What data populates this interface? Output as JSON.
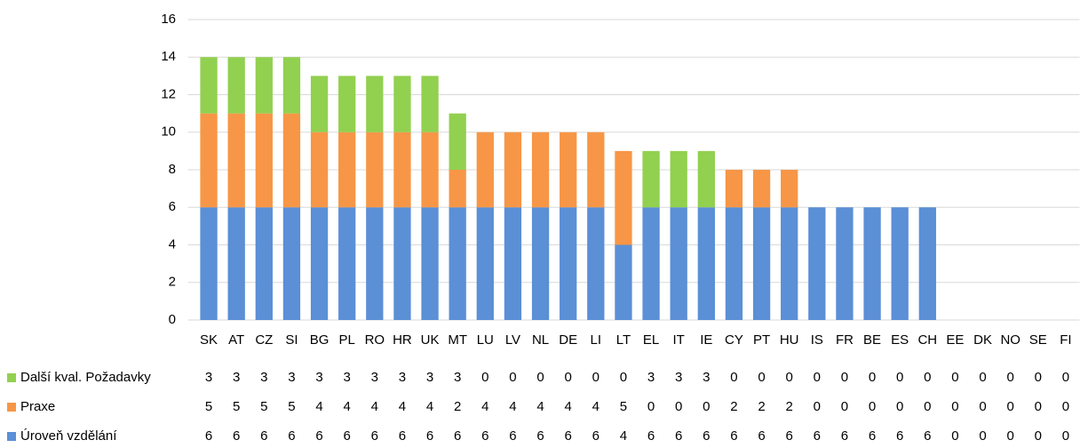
{
  "chart_data": {
    "type": "stacked_bar",
    "categories": [
      "SK",
      "AT",
      "CZ",
      "SI",
      "BG",
      "PL",
      "RO",
      "HR",
      "UK",
      "MT",
      "LU",
      "LV",
      "NL",
      "DE",
      "LI",
      "LT",
      "EL",
      "IT",
      "IE",
      "CY",
      "PT",
      "HU",
      "IS",
      "FR",
      "BE",
      "ES",
      "CH",
      "EE",
      "DK",
      "NO",
      "SE",
      "FI"
    ],
    "series": [
      {
        "name": "Další kval. Požadavky",
        "color": "#92d050",
        "values": [
          3,
          3,
          3,
          3,
          3,
          3,
          3,
          3,
          3,
          3,
          0,
          0,
          0,
          0,
          0,
          0,
          3,
          3,
          3,
          0,
          0,
          0,
          0,
          0,
          0,
          0,
          0,
          0,
          0,
          0,
          0,
          0
        ]
      },
      {
        "name": "Praxe",
        "color": "#f79646",
        "values": [
          5,
          5,
          5,
          5,
          4,
          4,
          4,
          4,
          4,
          2,
          4,
          4,
          4,
          4,
          4,
          5,
          0,
          0,
          0,
          2,
          2,
          2,
          0,
          0,
          0,
          0,
          0,
          0,
          0,
          0,
          0,
          0
        ]
      },
      {
        "name": "Úroveň vzdělání",
        "color": "#5b8fd6",
        "values": [
          6,
          6,
          6,
          6,
          6,
          6,
          6,
          6,
          6,
          6,
          6,
          6,
          6,
          6,
          6,
          4,
          6,
          6,
          6,
          6,
          6,
          6,
          6,
          6,
          6,
          6,
          6,
          0,
          0,
          0,
          0,
          0
        ]
      }
    ],
    "ylim": [
      0,
      16
    ],
    "yticks": [
      0,
      2,
      4,
      6,
      8,
      10,
      12,
      14,
      16
    ],
    "grid": true
  }
}
